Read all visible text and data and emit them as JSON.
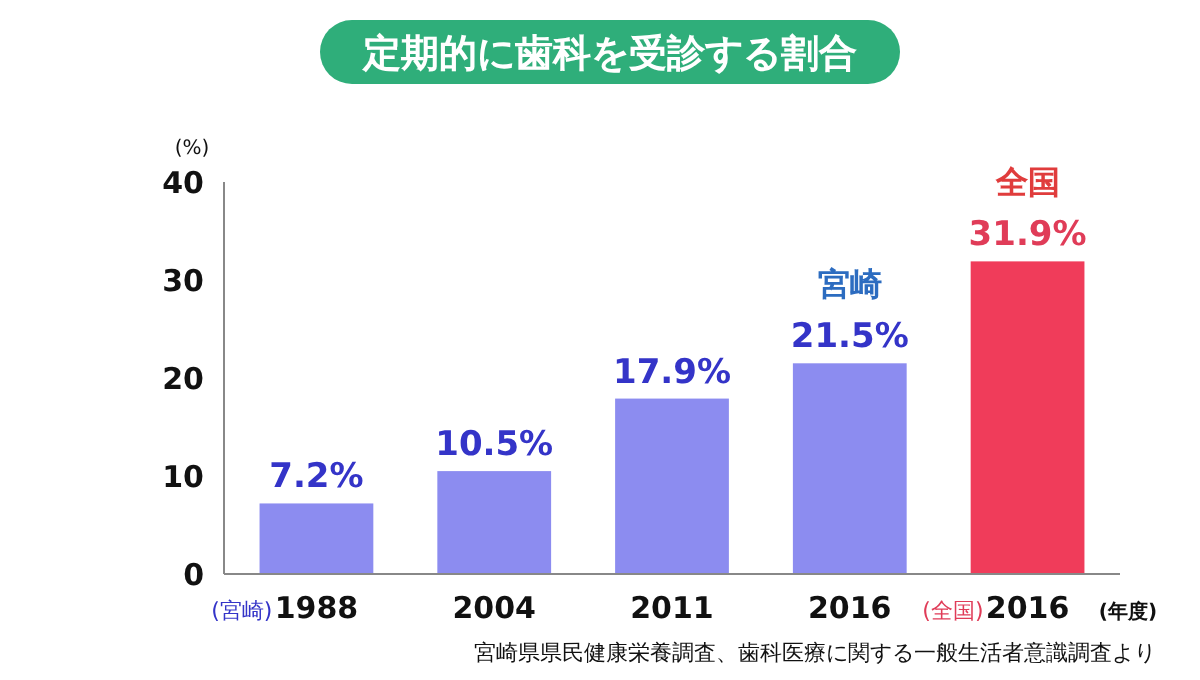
{
  "chart_data": {
    "type": "bar",
    "title": "定期的に歯科を受診する割合",
    "ylabel": "(%)",
    "xlabel": "(年度)",
    "categories": [
      "1988",
      "2004",
      "2011",
      "2016",
      "2016"
    ],
    "series": [
      {
        "name": "宮崎",
        "color": "#8c8cf0",
        "values": [
          7.2,
          10.5,
          17.9,
          21.5,
          null
        ],
        "value_labels": [
          "7.2%",
          "10.5%",
          "17.9%",
          "21.5%",
          null
        ]
      },
      {
        "name": "全国",
        "color": "#f03c5a",
        "values": [
          null,
          null,
          null,
          null,
          31.9
        ],
        "value_labels": [
          null,
          null,
          null,
          null,
          "31.9%"
        ]
      }
    ],
    "ylim": [
      0,
      40
    ],
    "yticks": [
      0,
      10,
      20,
      30,
      40
    ],
    "grid": false,
    "annotations": [
      "(宮崎)",
      "(全国)",
      "宮崎県県民健康栄養調査、歯科医療に関する一般生活者意識調査より"
    ]
  }
}
